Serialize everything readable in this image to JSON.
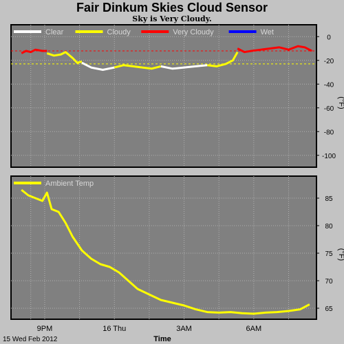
{
  "title": "Fair Dinkum Skies Cloud Sensor",
  "subtitle": "Sky is Very Cloudy.",
  "chart_data": [
    {
      "type": "line",
      "panel": "sky",
      "ylabel": "(°F)",
      "ylim": [
        -110,
        10
      ],
      "yticks": [
        0,
        -20,
        -40,
        -60,
        -80,
        -100
      ],
      "grid": true,
      "legend": [
        {
          "name": "Clear",
          "color": "#ffffff"
        },
        {
          "name": "Cloudy",
          "color": "#ffff00"
        },
        {
          "name": "Very Cloudy",
          "color": "#ff0000"
        },
        {
          "name": "Wet",
          "color": "#0000ff"
        }
      ],
      "thresholds": [
        {
          "value": -12,
          "color": "#ff0000"
        },
        {
          "value": -23,
          "color": "#ffff00"
        }
      ],
      "series": [
        {
          "x": [
            20.0,
            20.2,
            20.4,
            20.6,
            20.9,
            21.1
          ],
          "y": [
            -14,
            -12,
            -13,
            -11,
            -12,
            -12
          ],
          "color": "#ff0000"
        },
        {
          "x": [
            21.1,
            21.4,
            21.7,
            21.9,
            22.2,
            22.4,
            22.6
          ],
          "y": [
            -14,
            -16,
            -15,
            -13,
            -18,
            -22,
            -21
          ],
          "color": "#ffff00"
        },
        {
          "x": [
            22.6,
            23.0,
            23.5,
            24.0
          ],
          "y": [
            -22,
            -26,
            -28,
            -26
          ],
          "color": "#ffffff"
        },
        {
          "x": [
            24.0,
            24.4,
            24.8,
            25.2,
            25.6,
            26.0
          ],
          "y": [
            -26,
            -24,
            -25,
            -26,
            -27,
            -25
          ],
          "color": "#ffff00"
        },
        {
          "x": [
            26.0,
            26.5,
            27.0,
            27.5,
            28.0
          ],
          "y": [
            -25,
            -27,
            -26,
            -25,
            -24
          ],
          "color": "#ffffff"
        },
        {
          "x": [
            28.0,
            28.4,
            28.8,
            29.1,
            29.3
          ],
          "y": [
            -24,
            -25,
            -23,
            -20,
            -13
          ],
          "color": "#ffff00"
        },
        {
          "x": [
            29.3,
            29.6,
            29.9,
            30.3,
            30.7,
            31.1,
            31.5,
            31.9,
            32.2,
            32.5
          ],
          "y": [
            -10,
            -13,
            -12,
            -11,
            -10,
            -9,
            -11,
            -8,
            -9,
            -12
          ],
          "color": "#ff0000"
        }
      ]
    },
    {
      "type": "line",
      "panel": "ambient",
      "ylabel": "(°F)",
      "ylim": [
        63,
        89
      ],
      "yticks": [
        85,
        80,
        75,
        70,
        65
      ],
      "grid": true,
      "legend": [
        {
          "name": "Ambient Temp",
          "color": "#ffff00"
        }
      ],
      "xticks": [
        {
          "label": "9PM",
          "value": 21
        },
        {
          "label": "16 Thu",
          "value": 24
        },
        {
          "label": "3AM",
          "value": 27
        },
        {
          "label": "6AM",
          "value": 30
        }
      ],
      "xlabel": "Time",
      "footer": "15 Wed Feb 2012",
      "series": [
        {
          "name": "Ambient Temp",
          "color": "#ffff00",
          "x": [
            20.0,
            20.3,
            20.6,
            20.9,
            21.1,
            21.3,
            21.6,
            21.9,
            22.2,
            22.6,
            23.0,
            23.4,
            23.8,
            24.2,
            24.6,
            25.0,
            25.5,
            26.0,
            26.5,
            27.0,
            27.5,
            28.0,
            28.5,
            29.0,
            29.5,
            30.0,
            30.5,
            31.0,
            31.5,
            32.0,
            32.4
          ],
          "y": [
            86.5,
            85.5,
            85.0,
            84.5,
            86.0,
            83.0,
            82.5,
            80.5,
            78.0,
            75.5,
            74.0,
            73.0,
            72.5,
            71.5,
            70.0,
            68.5,
            67.5,
            66.5,
            66.0,
            65.5,
            64.8,
            64.3,
            64.2,
            64.3,
            64.1,
            64.0,
            64.2,
            64.3,
            64.5,
            64.8,
            65.7
          ]
        }
      ]
    }
  ]
}
